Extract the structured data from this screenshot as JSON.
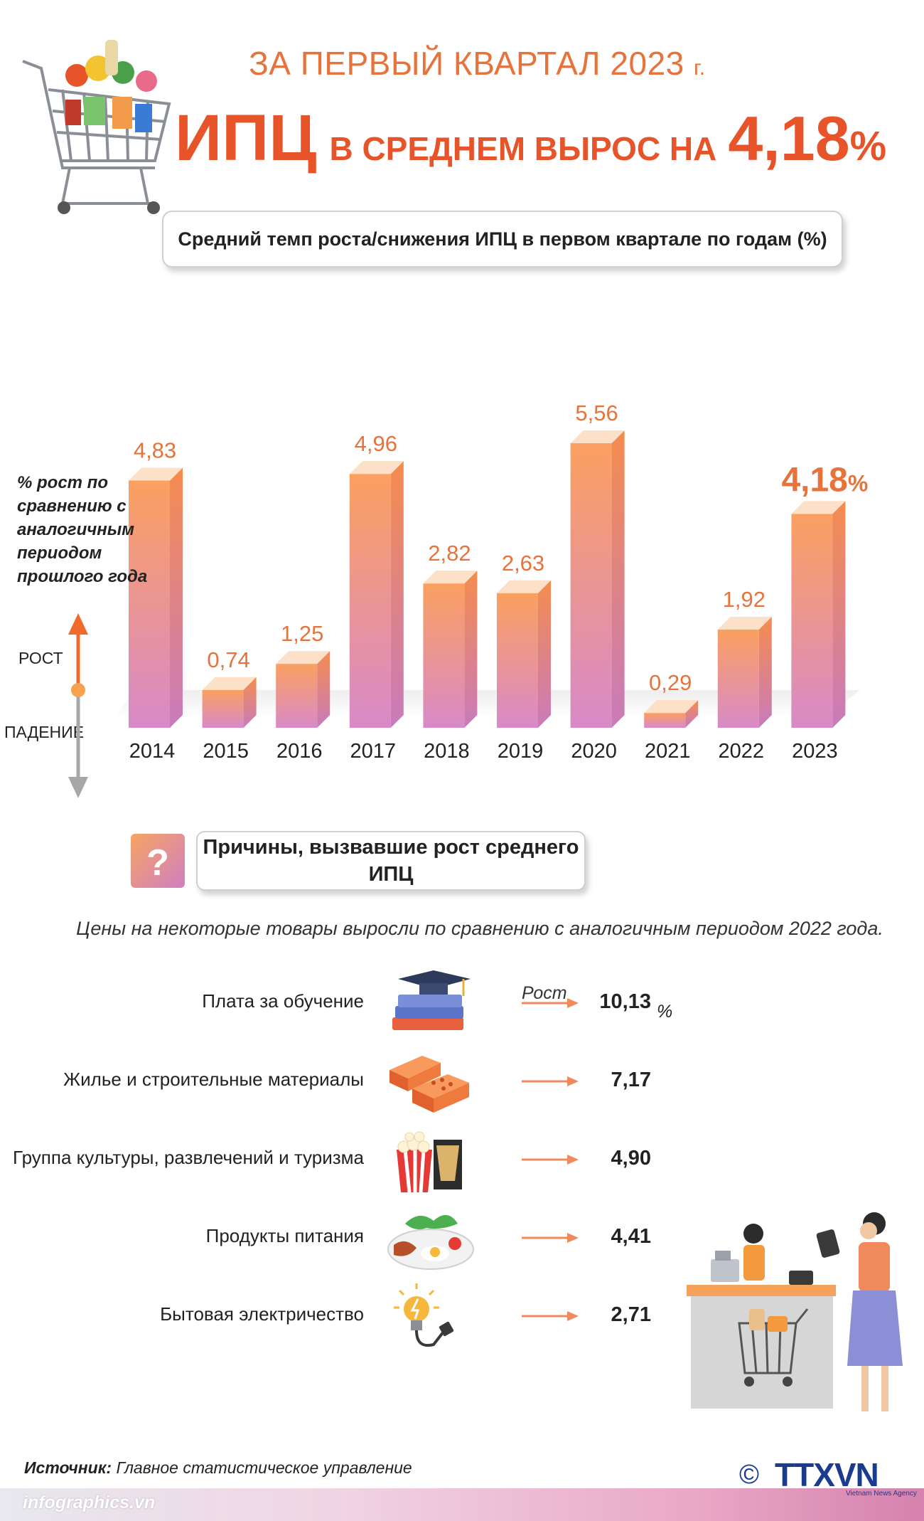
{
  "header": {
    "line1": "ЗА ПЕРВЫЙ КВАРТАЛ 2023",
    "line1_suffix": "г.",
    "cpi": "ИПЦ",
    "avg_rise": "В СРЕДНЕМ ВЫРОС НА",
    "value": "4,18",
    "pct": "%"
  },
  "chart_title": "Средний темп роста/снижения ИПЦ в первом квартале по годам (%)",
  "axis_note": "% рост по сравнению с аналогичным периодом прошлого года",
  "rise_label": "РОСТ",
  "fall_label": "ПАДЕНИЕ",
  "chart_data": {
    "type": "bar",
    "title": "Средний темп роста/снижения ИПЦ в первом квартале по годам (%)",
    "categories": [
      "2014",
      "2015",
      "2016",
      "2017",
      "2018",
      "2019",
      "2020",
      "2021",
      "2022",
      "2023"
    ],
    "values": [
      4.83,
      0.74,
      1.25,
      4.96,
      2.82,
      2.63,
      5.56,
      0.29,
      1.92,
      4.18
    ],
    "value_labels": [
      "4,83",
      "0,74",
      "1,25",
      "4,96",
      "2,82",
      "2,63",
      "5,56",
      "0,29",
      "1,92",
      "4,18"
    ],
    "highlight_suffix": "%",
    "ylabel": "% рост по сравнению с аналогичным периодом прошлого года",
    "ylim": [
      0,
      6
    ],
    "grid": false,
    "colors": {
      "bar_top": "#fba060",
      "bar_bottom": "#d88ac8",
      "label": "#e8733a",
      "cap": "#fde0c8"
    }
  },
  "reasons": {
    "title": "Причины, вызвавшие рост среднего ИПЦ",
    "icon": "question-icon",
    "note": "Цены на некоторые товары выросли по сравнению с аналогичным периодом 2022 года.",
    "growth_label": "Рост",
    "pct": "%",
    "items": [
      {
        "label": "Плата за обучение",
        "value": "10,13",
        "icon": "graduation-cap-icon"
      },
      {
        "label": "Жилье и строительные материалы",
        "value": "7,17",
        "icon": "bricks-icon"
      },
      {
        "label": "Группа культуры, развлечений и туризма",
        "value": "4,90",
        "icon": "popcorn-icon"
      },
      {
        "label": "Продукты питания",
        "value": "4,41",
        "icon": "food-plate-icon"
      },
      {
        "label": "Бытовая электричество",
        "value": "2,71",
        "icon": "lightbulb-plug-icon"
      }
    ]
  },
  "footer": {
    "source_label": "Источник:",
    "source_text": "Главное статистическое управление",
    "site": "infographics.vn",
    "copyright": "©",
    "brand": "TTXVN",
    "brand_sub": "Vietnam News Agency"
  }
}
